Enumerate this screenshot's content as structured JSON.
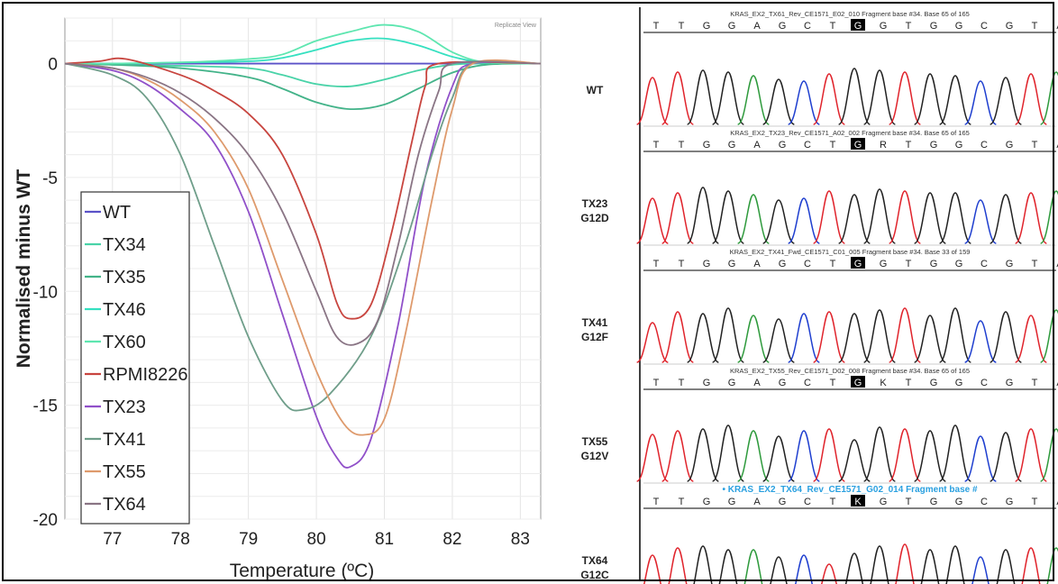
{
  "chart_data": [
    {
      "type": "line",
      "title": "",
      "xlabel": "Temperature (ºC)",
      "ylabel": "Normalised minus WT",
      "corner_label": "Replicate View",
      "xlim": [
        76.3,
        83.3
      ],
      "ylim": [
        -20,
        2
      ],
      "x_ticks": [
        77,
        78,
        79,
        80,
        81,
        82,
        83
      ],
      "y_ticks": [
        0,
        -5,
        -10,
        -15,
        -20
      ],
      "grid": true,
      "legend_position": "bottom-left",
      "series": [
        {
          "name": "WT",
          "color": "#5b52c8",
          "points": [
            [
              76.3,
              0
            ],
            [
              77,
              0
            ],
            [
              78,
              0
            ],
            [
              79,
              0
            ],
            [
              80,
              0
            ],
            [
              81,
              0
            ],
            [
              82,
              0
            ],
            [
              83,
              0
            ],
            [
              83.3,
              0
            ]
          ]
        },
        {
          "name": "TX34",
          "color": "#49d3a8",
          "points": [
            [
              76.3,
              0
            ],
            [
              77,
              -0.05
            ],
            [
              78,
              -0.1
            ],
            [
              79,
              -0.2
            ],
            [
              79.5,
              -0.5
            ],
            [
              80,
              -0.9
            ],
            [
              80.5,
              -1
            ],
            [
              81,
              -0.7
            ],
            [
              81.5,
              -0.3
            ],
            [
              82,
              -0.05
            ],
            [
              82.5,
              0
            ],
            [
              83.3,
              0
            ]
          ]
        },
        {
          "name": "TX35",
          "color": "#43b389",
          "points": [
            [
              76.3,
              0
            ],
            [
              77,
              -0.05
            ],
            [
              78,
              -0.2
            ],
            [
              79,
              -0.6
            ],
            [
              79.5,
              -1.1
            ],
            [
              80,
              -1.7
            ],
            [
              80.5,
              -2
            ],
            [
              81,
              -1.8
            ],
            [
              81.5,
              -1.1
            ],
            [
              82,
              -0.4
            ],
            [
              82.5,
              -0.05
            ],
            [
              83.3,
              0
            ]
          ]
        },
        {
          "name": "TX46",
          "color": "#35e0c0",
          "points": [
            [
              76.3,
              0
            ],
            [
              77,
              0
            ],
            [
              78,
              0.05
            ],
            [
              79,
              0.1
            ],
            [
              79.5,
              0.25
            ],
            [
              80,
              0.6
            ],
            [
              80.5,
              1
            ],
            [
              81,
              1.1
            ],
            [
              81.5,
              0.8
            ],
            [
              82,
              0.3
            ],
            [
              82.5,
              0.05
            ],
            [
              83.3,
              0
            ]
          ]
        },
        {
          "name": "TX60",
          "color": "#5ee6b0",
          "points": [
            [
              76.3,
              0
            ],
            [
              77,
              0
            ],
            [
              78,
              0.05
            ],
            [
              79,
              0.2
            ],
            [
              79.5,
              0.4
            ],
            [
              80,
              1
            ],
            [
              80.5,
              1.4
            ],
            [
              81,
              1.7
            ],
            [
              81.5,
              1.4
            ],
            [
              82,
              0.5
            ],
            [
              82.5,
              0.05
            ],
            [
              83.3,
              0
            ]
          ]
        },
        {
          "name": "RPMI8226",
          "color": "#c8453f",
          "points": [
            [
              76.3,
              0
            ],
            [
              76.8,
              0.1
            ],
            [
              77.2,
              0.2
            ],
            [
              78,
              -0.5
            ],
            [
              78.5,
              -1.2
            ],
            [
              79,
              -2.2
            ],
            [
              79.5,
              -4
            ],
            [
              80,
              -7.5
            ],
            [
              80.3,
              -10.5
            ],
            [
              80.5,
              -11.2
            ],
            [
              80.8,
              -10.6
            ],
            [
              81.1,
              -7.5
            ],
            [
              81.4,
              -3.5
            ],
            [
              81.6,
              -1
            ],
            [
              81.8,
              0
            ],
            [
              83.3,
              0
            ]
          ]
        },
        {
          "name": "TX23",
          "color": "#9050c9",
          "points": [
            [
              76.3,
              0
            ],
            [
              77,
              -0.3
            ],
            [
              77.5,
              -0.9
            ],
            [
              78,
              -2
            ],
            [
              78.5,
              -3.5
            ],
            [
              79,
              -6.5
            ],
            [
              79.5,
              -11
            ],
            [
              80,
              -15.5
            ],
            [
              80.3,
              -17.3
            ],
            [
              80.5,
              -17.7
            ],
            [
              80.8,
              -16.5
            ],
            [
              81.2,
              -11.5
            ],
            [
              81.6,
              -5
            ],
            [
              82,
              -1
            ],
            [
              82.3,
              0
            ],
            [
              83.3,
              0
            ]
          ]
        },
        {
          "name": "TX41",
          "color": "#6f9e8a",
          "points": [
            [
              76.3,
              0
            ],
            [
              77,
              -0.5
            ],
            [
              77.5,
              -1.5
            ],
            [
              78,
              -4
            ],
            [
              78.5,
              -8
            ],
            [
              79,
              -12
            ],
            [
              79.5,
              -14.8
            ],
            [
              79.8,
              -15.2
            ],
            [
              80.2,
              -14.5
            ],
            [
              80.8,
              -12
            ],
            [
              81.3,
              -8
            ],
            [
              81.7,
              -4
            ],
            [
              82,
              -1.5
            ],
            [
              82.3,
              0
            ],
            [
              83.3,
              0
            ]
          ]
        },
        {
          "name": "TX55",
          "color": "#de9a6c",
          "points": [
            [
              76.3,
              0
            ],
            [
              77,
              -0.2
            ],
            [
              77.5,
              -0.7
            ],
            [
              78,
              -1.6
            ],
            [
              78.5,
              -3
            ],
            [
              79,
              -5.5
            ],
            [
              79.5,
              -9.5
            ],
            [
              80,
              -13.5
            ],
            [
              80.4,
              -15.8
            ],
            [
              80.7,
              -16.3
            ],
            [
              81,
              -15.6
            ],
            [
              81.3,
              -12
            ],
            [
              81.7,
              -6
            ],
            [
              82,
              -2
            ],
            [
              82.3,
              0
            ],
            [
              83.3,
              0
            ]
          ]
        },
        {
          "name": "TX64",
          "color": "#8a7585",
          "points": [
            [
              76.3,
              0
            ],
            [
              77,
              -0.2
            ],
            [
              77.5,
              -0.6
            ],
            [
              78,
              -1.3
            ],
            [
              78.5,
              -2.4
            ],
            [
              79,
              -4
            ],
            [
              79.5,
              -6.5
            ],
            [
              80,
              -10
            ],
            [
              80.3,
              -12
            ],
            [
              80.6,
              -12.3
            ],
            [
              80.9,
              -11.3
            ],
            [
              81.2,
              -8
            ],
            [
              81.5,
              -4
            ],
            [
              81.8,
              -1.2
            ],
            [
              82,
              0
            ],
            [
              83.3,
              0
            ]
          ]
        }
      ]
    },
    {
      "type": "chromatogram",
      "panels": [
        {
          "label": "WT",
          "header": "KRAS_EX2_TX61_Rev_CE1571_E02_010 Fragment base #34. Base 65 of 165",
          "header_highlight": false,
          "bases": [
            "T",
            "T",
            "G",
            "G",
            "A",
            "G",
            "C",
            "T",
            "G",
            "G",
            "T",
            "G",
            "G",
            "C",
            "G",
            "T",
            "A"
          ],
          "highlight_index": 8
        },
        {
          "label": "TX23\nG12D",
          "header": "KRAS_EX2_TX23_Rev_CE1571_A02_002 Fragment base #34. Base 65 of 165",
          "header_highlight": false,
          "bases": [
            "T",
            "T",
            "G",
            "G",
            "A",
            "G",
            "C",
            "T",
            "G",
            "R",
            "T",
            "G",
            "G",
            "C",
            "G",
            "T",
            "A"
          ],
          "highlight_index": 8
        },
        {
          "label": "TX41\nG12F",
          "header": "KRAS_EX2_TX41_Fwd_CE1571_C01_005 Fragment base #34. Base 33 of 159",
          "header_highlight": false,
          "bases": [
            "T",
            "T",
            "G",
            "G",
            "A",
            "G",
            "C",
            "T",
            "G",
            "G",
            "T",
            "G",
            "G",
            "C",
            "G",
            "T",
            "A"
          ],
          "highlight_index": 8
        },
        {
          "label": "TX55\nG12V",
          "header": "KRAS_EX2_TX55_Rev_CE1571_D02_008 Fragment base #34. Base 65 of 165",
          "header_highlight": false,
          "bases": [
            "T",
            "T",
            "G",
            "G",
            "A",
            "G",
            "C",
            "T",
            "G",
            "K",
            "T",
            "G",
            "G",
            "C",
            "G",
            "T",
            "A"
          ],
          "highlight_index": 8
        },
        {
          "label": "TX64\nG12C",
          "header": "• KRAS_EX2_TX64_Rev_CE1571_G02_014 Fragment base #",
          "header_highlight": true,
          "bases": [
            "T",
            "T",
            "G",
            "G",
            "A",
            "G",
            "C",
            "T",
            "K",
            "G",
            "T",
            "G",
            "G",
            "C",
            "G",
            "T",
            "A"
          ],
          "highlight_index": 8
        }
      ],
      "trace_colors": {
        "A": "#2e9a3c",
        "C": "#1f3fcf",
        "G": "#222222",
        "T": "#e0242c"
      }
    }
  ]
}
